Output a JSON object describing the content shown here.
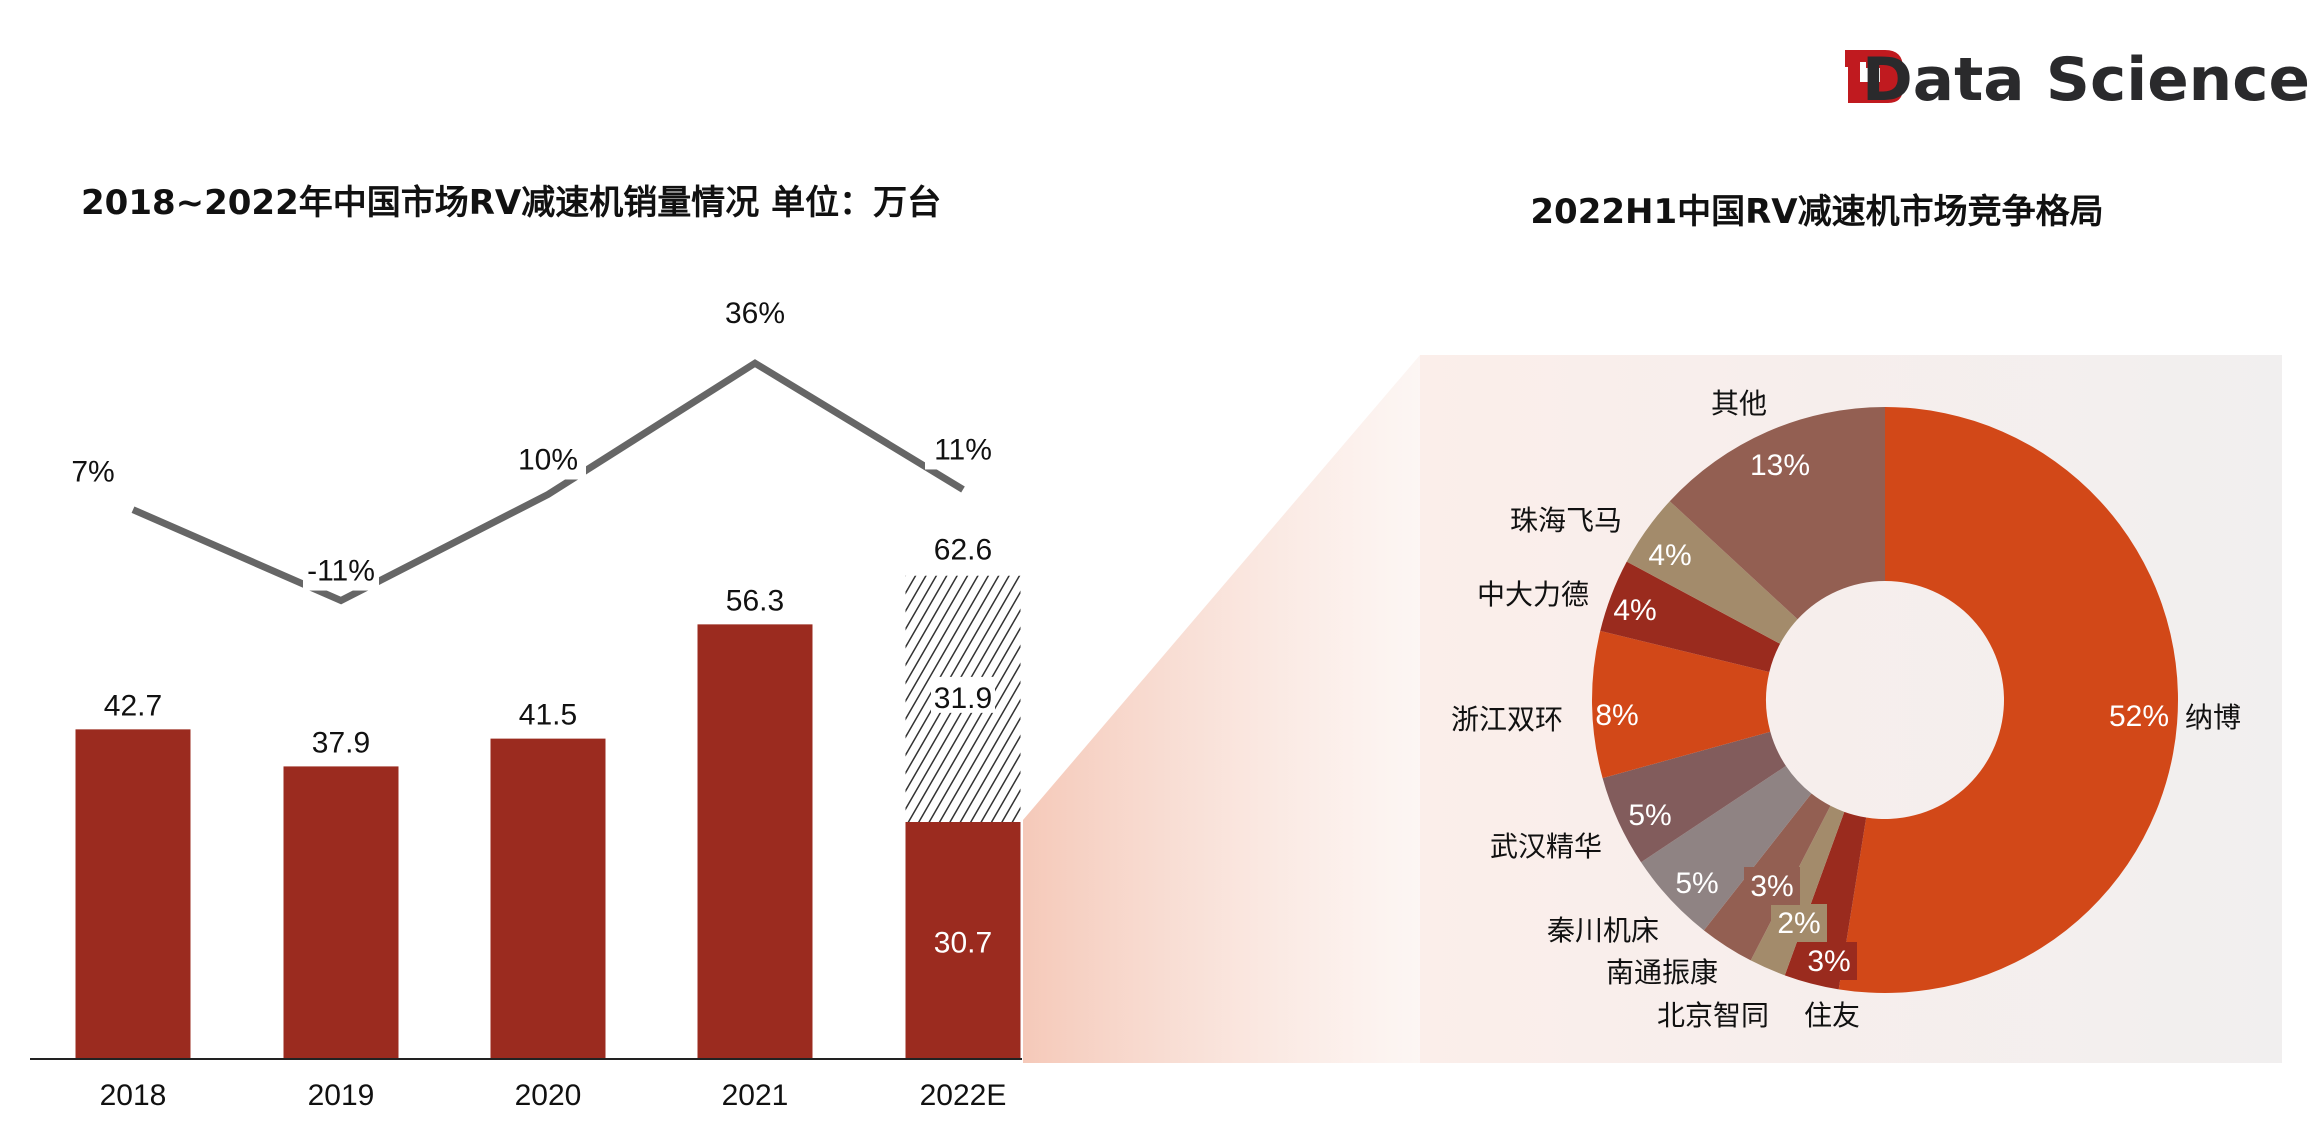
{
  "logo": {
    "text": "Data Science"
  },
  "chart_data": [
    {
      "type": "bar",
      "title": "2018~2022年中国市场RV减速机销量情况  单位：万台",
      "categories": [
        "2018",
        "2019",
        "2020",
        "2021",
        "2022E"
      ],
      "values": [
        42.7,
        37.9,
        41.5,
        56.3,
        62.6
      ],
      "stacked_2022E": {
        "actual": 30.7,
        "forecast": 31.9
      },
      "value_labels": [
        "42.7",
        "37.9",
        "41.5",
        "56.3",
        "62.6"
      ],
      "stack_labels": [
        "30.7",
        "31.9"
      ],
      "growth": {
        "type": "line",
        "values": [
          7,
          -11,
          10,
          36,
          11
        ],
        "labels": [
          "7%",
          "-11%",
          "10%",
          "36%",
          "11%"
        ]
      },
      "unit": "万台",
      "colors": {
        "bar": "#9B2B1F",
        "line": "#666666",
        "hatch": "#333333"
      }
    },
    {
      "type": "pie",
      "title": "2022H1中国RV减速机市场竞争格局",
      "slices": [
        {
          "name": "纳博",
          "value": 52,
          "label": "52%",
          "color": "#D24818"
        },
        {
          "name": "住友",
          "value": 3,
          "label": "3%",
          "color": "#9A2B1E"
        },
        {
          "name": "北京智同",
          "value": 2,
          "label": "2%",
          "color": "#A38B6B"
        },
        {
          "name": "南通振康",
          "value": 3,
          "label": "3%",
          "color": "#935F52"
        },
        {
          "name": "秦川机床",
          "value": 5,
          "label": "5%",
          "color": "#8F8383"
        },
        {
          "name": "武汉精华",
          "value": 5,
          "label": "5%",
          "color": "#825C5C"
        },
        {
          "name": "浙江双环",
          "value": 8,
          "label": "8%",
          "color": "#D24818"
        },
        {
          "name": "中大力德",
          "value": 4,
          "label": "4%",
          "color": "#9A2B1E"
        },
        {
          "name": "珠海飞马",
          "value": 4,
          "label": "4%",
          "color": "#A38B6B"
        },
        {
          "name": "其他",
          "value": 13,
          "label": "13%",
          "color": "#935F52"
        }
      ]
    }
  ]
}
